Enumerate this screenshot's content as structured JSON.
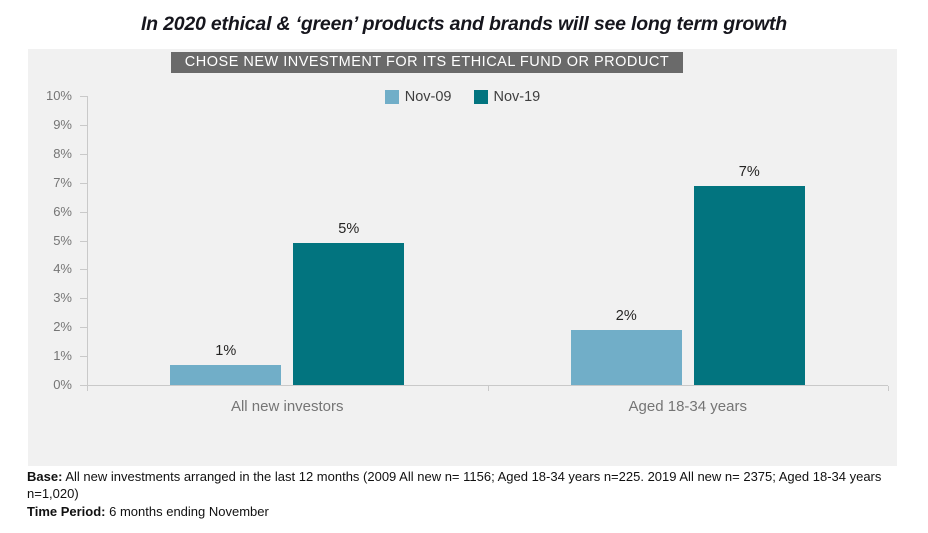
{
  "chart_data": {
    "type": "bar",
    "title": "In 2020 ethical & ‘green’ products and brands will see long term growth",
    "subtitle": "CHOSE NEW INVESTMENT FOR ITS ETHICAL FUND OR PRODUCT",
    "categories": [
      "All new investors",
      "Aged 18-34 years"
    ],
    "series": [
      {
        "name": "Nov-09",
        "color": "#71AEC8",
        "values": [
          1,
          2
        ],
        "plotted_values": [
          0.7,
          1.9
        ],
        "labels": [
          "1%",
          "2%"
        ]
      },
      {
        "name": "Nov-19",
        "color": "#02747F",
        "values": [
          5,
          7
        ],
        "plotted_values": [
          4.9,
          6.9
        ],
        "labels": [
          "5%",
          "7%"
        ]
      }
    ],
    "xlabel": "",
    "ylabel": "",
    "ylim": [
      0,
      10
    ],
    "yticks": [
      "0%",
      "1%",
      "2%",
      "3%",
      "4%",
      "5%",
      "6%",
      "7%",
      "8%",
      "9%",
      "10%"
    ],
    "legend_position": "top-center",
    "grid": false
  },
  "footer": {
    "base_label": "Base:",
    "base_text": "All new investments arranged in the last 12 months (2009 All new n= 1156; Aged 18-34 years n=225. 2019 All new n= 2375; Aged 18-34 years n=1,020)",
    "time_label": "Time Period:",
    "time_text": "6 months ending November"
  },
  "colors": {
    "nov09": "#71AEC8",
    "nov19": "#02747F",
    "banner_bg": "#6A6A6A",
    "banner_text": "#FFFFFF",
    "chart_bg": "#F1F1F1",
    "axis": "#C9C9C9",
    "label_gray": "#757575",
    "data_label": "#252423",
    "title_text": "#16161D"
  }
}
